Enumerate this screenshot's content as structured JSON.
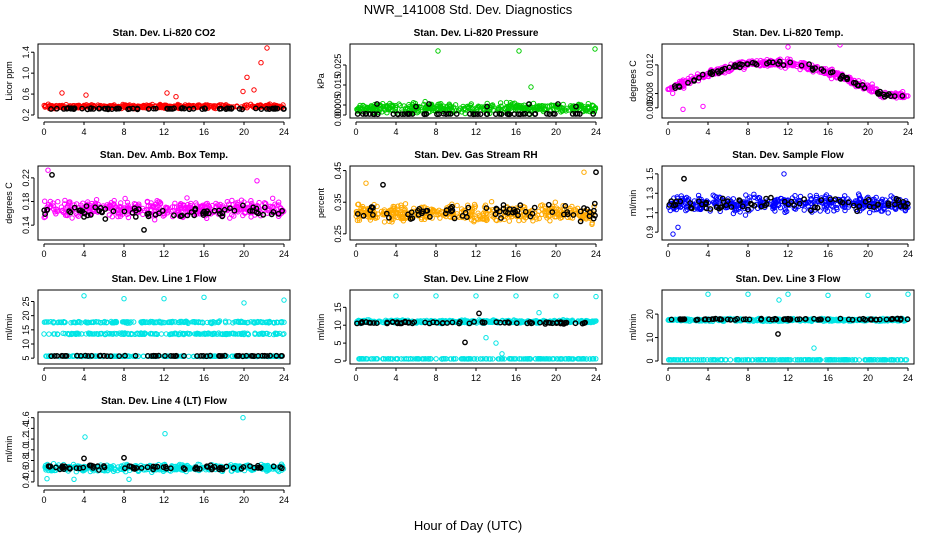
{
  "figure": {
    "title": "NWR_141008 Std. Dev. Diagnostics",
    "xlabel": "Hour of Day (UTC)"
  },
  "chart_data": [
    {
      "type": "scatter",
      "title": "Stan. Dev. Li-820 CO2",
      "xlabel": "",
      "ylabel": "Licor ppm",
      "xlim": [
        0,
        24
      ],
      "ylim": [
        0.2,
        1.5
      ],
      "xticks": [
        "0",
        "4",
        "8",
        "12",
        "16",
        "20",
        "24"
      ],
      "yticks": [
        "0.2",
        "0.6",
        "1.0",
        "1.4"
      ],
      "grid": false,
      "legend": "none",
      "colors": [
        "#ff0000",
        "#000000"
      ],
      "series": [
        {
          "n": 400,
          "base": 0.36,
          "spread": 0.05,
          "outliers": [
            [
              1.8,
              0.62
            ],
            [
              4.2,
              0.58
            ],
            [
              12.3,
              0.62
            ],
            [
              13.2,
              0.55
            ],
            [
              19.9,
              0.65
            ],
            [
              20.3,
              0.92
            ],
            [
              21.7,
              1.2
            ],
            [
              22.3,
              1.48
            ],
            [
              21.0,
              0.68
            ]
          ]
        },
        {
          "n": 70,
          "base": 0.32,
          "spread": 0.02,
          "outliers": []
        }
      ]
    },
    {
      "type": "scatter",
      "title": "Stan. Dev. Li-820 Pressure",
      "xlabel": "",
      "ylabel": "kPa",
      "xlim": [
        0,
        24
      ],
      "ylim": [
        0,
        0.034
      ],
      "xticks": [
        "0",
        "4",
        "8",
        "12",
        "16",
        "20",
        "24"
      ],
      "yticks": [
        "0.000",
        "0.005",
        "0.015",
        "0.025"
      ],
      "grid": false,
      "legend": "none",
      "colors": [
        "#00cc00",
        "#000000"
      ],
      "series": [
        {
          "n": 400,
          "base": 0.0035,
          "spread": 0.0035,
          "outliers": [
            [
              8.2,
              0.032
            ],
            [
              16.3,
              0.032
            ],
            [
              17.5,
              0.014
            ],
            [
              23.9,
              0.033
            ]
          ]
        },
        {
          "n": 60,
          "base": 0.0005,
          "spread": 0.0002,
          "outliers": [
            [
              2.1,
              0.0055
            ],
            [
              7.3,
              0.0055
            ],
            [
              17.3,
              0.0055
            ],
            [
              20.2,
              0.0055
            ],
            [
              6.0,
              0.0042
            ],
            [
              13.1,
              0.0042
            ],
            [
              22.0,
              0.0042
            ]
          ]
        }
      ]
    },
    {
      "type": "scatter",
      "title": "Stan. Dev. Li-820 Temp.",
      "xlabel": "",
      "ylabel": "degrees C",
      "xlim": [
        0,
        24
      ],
      "ylim": [
        0.005,
        0.0145
      ],
      "xticks": [
        "0",
        "4",
        "8",
        "12",
        "16",
        "20",
        "24"
      ],
      "yticks": [
        "0.006",
        "0.008",
        "0.012"
      ],
      "grid": false,
      "legend": "none",
      "colors": [
        "#ff00ff",
        "#000000"
      ],
      "series": [
        {
          "n": 400,
          "shape": "arch",
          "spread": 0.0008,
          "outliers": [
            [
              1.5,
              0.0058
            ],
            [
              3.5,
              0.0062
            ],
            [
              12.0,
              0.0145
            ],
            [
              17.2,
              0.0148
            ]
          ]
        },
        {
          "n": 70,
          "shape": "arch",
          "spread": 0.0005,
          "outliers": []
        }
      ]
    },
    {
      "type": "scatter",
      "title": "Stan. Dev. Amb. Box Temp.",
      "xlabel": "",
      "ylabel": "degrees C",
      "xlim": [
        0,
        24
      ],
      "ylim": [
        0.12,
        0.235
      ],
      "xticks": [
        "0",
        "4",
        "8",
        "12",
        "16",
        "20",
        "24"
      ],
      "yticks": [
        "0.14",
        "0.18",
        "0.22"
      ],
      "grid": false,
      "legend": "none",
      "colors": [
        "#ff00ff",
        "#000000"
      ],
      "series": [
        {
          "n": 400,
          "base": 0.168,
          "spread": 0.022,
          "outliers": [
            [
              0.4,
              0.233
            ],
            [
              21.3,
              0.215
            ]
          ]
        },
        {
          "n": 70,
          "base": 0.162,
          "spread": 0.015,
          "outliers": [
            [
              0.8,
              0.225
            ],
            [
              10.0,
              0.132
            ]
          ]
        }
      ]
    },
    {
      "type": "scatter",
      "title": "Stan. Dev. Gas Stream RH",
      "xlabel": "",
      "ylabel": "percent",
      "xlim": [
        0,
        24
      ],
      "ylim": [
        0.24,
        0.455
      ],
      "xticks": [
        "0",
        "4",
        "8",
        "12",
        "16",
        "20",
        "24"
      ],
      "yticks": [
        "0.25",
        "0.35",
        "0.45"
      ],
      "grid": false,
      "legend": "none",
      "colors": [
        "#ffaa00",
        "#000000"
      ],
      "series": [
        {
          "n": 400,
          "base": 0.315,
          "spread": 0.04,
          "outliers": [
            [
              22.8,
              0.445
            ],
            [
              1.0,
              0.41
            ]
          ]
        },
        {
          "n": 70,
          "base": 0.32,
          "spread": 0.035,
          "outliers": [
            [
              2.7,
              0.405
            ],
            [
              24.0,
              0.445
            ]
          ]
        }
      ]
    },
    {
      "type": "scatter",
      "title": "Stan. Dev. Sample Flow",
      "xlabel": "",
      "ylabel": "ml/min",
      "xlim": [
        0,
        24
      ],
      "ylim": [
        0.85,
        1.55
      ],
      "xticks": [
        "0",
        "4",
        "8",
        "12",
        "16",
        "20",
        "24"
      ],
      "yticks": [
        "0.9",
        "1.1",
        "1.3",
        "1.5"
      ],
      "grid": false,
      "legend": "none",
      "colors": [
        "#0000ff",
        "#000000"
      ],
      "series": [
        {
          "n": 400,
          "base": 1.19,
          "spread": 0.12,
          "outliers": [
            [
              0.5,
              0.88
            ],
            [
              11.6,
              1.5
            ],
            [
              1.0,
              0.95
            ]
          ]
        },
        {
          "n": 70,
          "base": 1.2,
          "spread": 0.1,
          "outliers": [
            [
              1.6,
              1.45
            ]
          ]
        }
      ]
    },
    {
      "type": "scatter",
      "title": "Stan. Dev. Line 1 Flow",
      "xlabel": "",
      "ylabel": "ml/min",
      "xlim": [
        0,
        24
      ],
      "ylim": [
        4,
        28
      ],
      "xticks": [
        "0",
        "4",
        "8",
        "12",
        "16",
        "20",
        "24"
      ],
      "yticks": [
        "5",
        "10",
        "15",
        "20",
        "25"
      ],
      "grid": false,
      "legend": "none",
      "colors": [
        "#00e5e5",
        "#000000"
      ],
      "series": [
        {
          "n": 200,
          "base": 17.7,
          "spread": 0.5,
          "outliers": [
            [
              4.0,
              27.0
            ],
            [
              8.0,
              26.0
            ],
            [
              12.0,
              26.0
            ],
            [
              16.0,
              26.5
            ],
            [
              20.0,
              24.5
            ],
            [
              24.0,
              25.5
            ]
          ]
        },
        {
          "n": 200,
          "base": 13.6,
          "spread": 0.4,
          "outliers": []
        },
        {
          "n": 200,
          "base": 5.7,
          "spread": 0.15,
          "outliers": []
        },
        {
          "n": 60,
          "base": 5.8,
          "spread": 0.15,
          "outliers": []
        }
      ]
    },
    {
      "type": "scatter",
      "title": "Stan. Dev. Line 2 Flow",
      "xlabel": "",
      "ylabel": "ml/min",
      "xlim": [
        0,
        24
      ],
      "ylim": [
        0,
        19
      ],
      "xticks": [
        "0",
        "4",
        "8",
        "12",
        "16",
        "20",
        "24"
      ],
      "yticks": [
        "0",
        "5",
        "10",
        "15"
      ],
      "grid": false,
      "legend": "none",
      "colors": [
        "#00e5e5",
        "#000000"
      ],
      "series": [
        {
          "n": 400,
          "base": 11.0,
          "spread": 0.6,
          "outliers": [
            [
              4.0,
              18.2
            ],
            [
              8.0,
              18.2
            ],
            [
              12.0,
              18.2
            ],
            [
              13.0,
              6.5
            ],
            [
              14.0,
              5.0
            ],
            [
              14.6,
              2.0
            ],
            [
              16.0,
              18.2
            ],
            [
              20.0,
              18.2
            ],
            [
              24.0,
              18.0
            ],
            [
              18.3,
              13.5
            ]
          ]
        },
        {
          "n": 200,
          "base": 0.6,
          "spread": 0.05,
          "outliers": []
        },
        {
          "n": 70,
          "base": 10.7,
          "spread": 0.4,
          "outliers": [
            [
              10.9,
              5.2
            ],
            [
              12.3,
              13.3
            ]
          ]
        }
      ]
    },
    {
      "type": "scatter",
      "title": "Stan. Dev. Line 3 Flow",
      "xlabel": "",
      "ylabel": "ml/min",
      "xlim": [
        0,
        24
      ],
      "ylim": [
        0,
        29
      ],
      "xticks": [
        "0",
        "4",
        "8",
        "12",
        "16",
        "20",
        "24"
      ],
      "yticks": [
        "0",
        "10",
        "20"
      ],
      "grid": false,
      "legend": "none",
      "colors": [
        "#00e5e5",
        "#000000"
      ],
      "series": [
        {
          "n": 400,
          "base": 17.5,
          "spread": 0.8,
          "outliers": [
            [
              4.0,
              28.5
            ],
            [
              8.0,
              28.5
            ],
            [
              12.0,
              28.5
            ],
            [
              14.6,
              5.5
            ],
            [
              16.0,
              28.0
            ],
            [
              20.0,
              28.0
            ],
            [
              24.0,
              28.5
            ],
            [
              11.1,
              26.0
            ]
          ]
        },
        {
          "n": 200,
          "base": 0.5,
          "spread": 0.05,
          "outliers": []
        },
        {
          "n": 70,
          "base": 17.8,
          "spread": 0.5,
          "outliers": [
            [
              11.0,
              11.5
            ]
          ]
        }
      ]
    },
    {
      "type": "scatter",
      "title": "Stan. Dev. Line 4 (LT) Flow",
      "xlabel": "",
      "ylabel": "ml/min",
      "xlim": [
        0,
        24
      ],
      "ylim": [
        0.38,
        1.65
      ],
      "xticks": [
        "0",
        "4",
        "8",
        "12",
        "16",
        "20",
        "24"
      ],
      "yticks": [
        "0.4",
        "0.6",
        "0.8",
        "1.0",
        "1.2",
        "1.4",
        "1.6"
      ],
      "grid": false,
      "legend": "none",
      "colors": [
        "#00e5e5",
        "#000000"
      ],
      "series": [
        {
          "n": 400,
          "base": 0.66,
          "spread": 0.09,
          "outliers": [
            [
              4.1,
              1.24
            ],
            [
              12.1,
              1.3
            ],
            [
              19.9,
              1.6
            ],
            [
              0.3,
              0.46
            ],
            [
              3.0,
              0.45
            ],
            [
              8.5,
              0.45
            ]
          ]
        },
        {
          "n": 70,
          "base": 0.67,
          "spread": 0.07,
          "outliers": [
            [
              4.0,
              0.84
            ],
            [
              8.0,
              0.85
            ]
          ]
        }
      ]
    }
  ]
}
